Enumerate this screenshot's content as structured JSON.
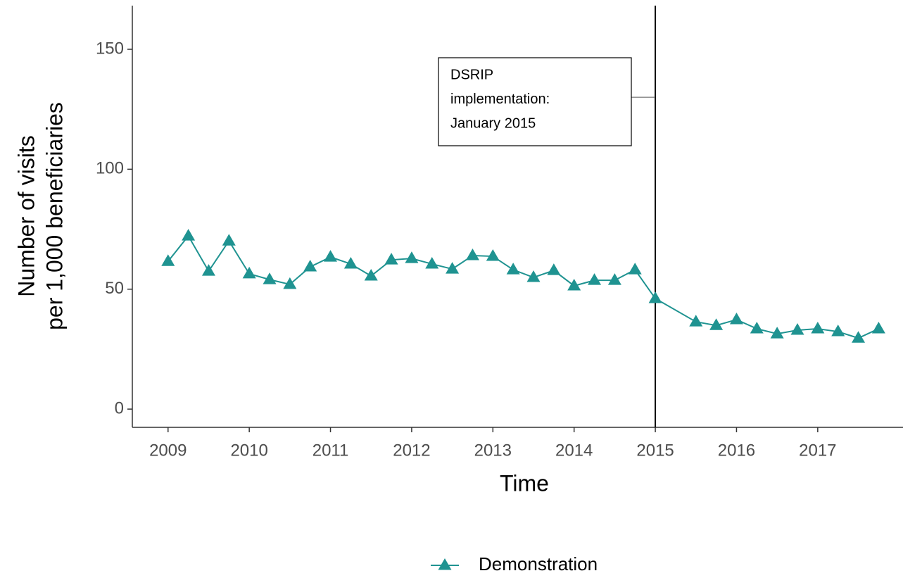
{
  "chart_data": {
    "type": "line",
    "x_label": "Time",
    "y_label": [
      "Number of visits",
      "per 1,000 beneficiaries"
    ],
    "x": [
      2009,
      2009.25,
      2009.5,
      2009.75,
      2010,
      2010.25,
      2010.5,
      2010.75,
      2011,
      2011.25,
      2011.5,
      2011.75,
      2012,
      2012.25,
      2012.5,
      2012.75,
      2013,
      2013.25,
      2013.5,
      2013.75,
      2014,
      2014.25,
      2014.5,
      2014.75,
      2015,
      2015.5,
      2015.75,
      2016,
      2016.25,
      2016.5,
      2016.75,
      2017,
      2017.25,
      2017.5,
      2017.75
    ],
    "series": [
      {
        "name": "Demonstration",
        "color": "#1f9391",
        "values": [
          61.6,
          72.2,
          57.5,
          70.1,
          56.4,
          54,
          52,
          59.3,
          63.4,
          60.5,
          55.5,
          62.2,
          62.8,
          60.5,
          58.4,
          64,
          63.7,
          58.1,
          54.9,
          57.8,
          51.4,
          53.7,
          53.7,
          58.1,
          46.1,
          36.4,
          34.9,
          37.3,
          33.5,
          31.4,
          32.9,
          33.5,
          32.3,
          29.6,
          33.5
        ]
      }
    ],
    "xlim": [
      2008.56,
      2018.05
    ],
    "ylim": [
      -7.6,
      168.2
    ],
    "xticks": [
      2009,
      2010,
      2011,
      2012,
      2013,
      2014,
      2015,
      2016,
      2017
    ],
    "yticks": [
      0,
      50,
      100,
      150
    ],
    "vline": 2015,
    "annotation": {
      "lines": [
        "DSRIP",
        "implementation:",
        "January 2015"
      ],
      "y": 130
    },
    "legend": "bottom"
  }
}
